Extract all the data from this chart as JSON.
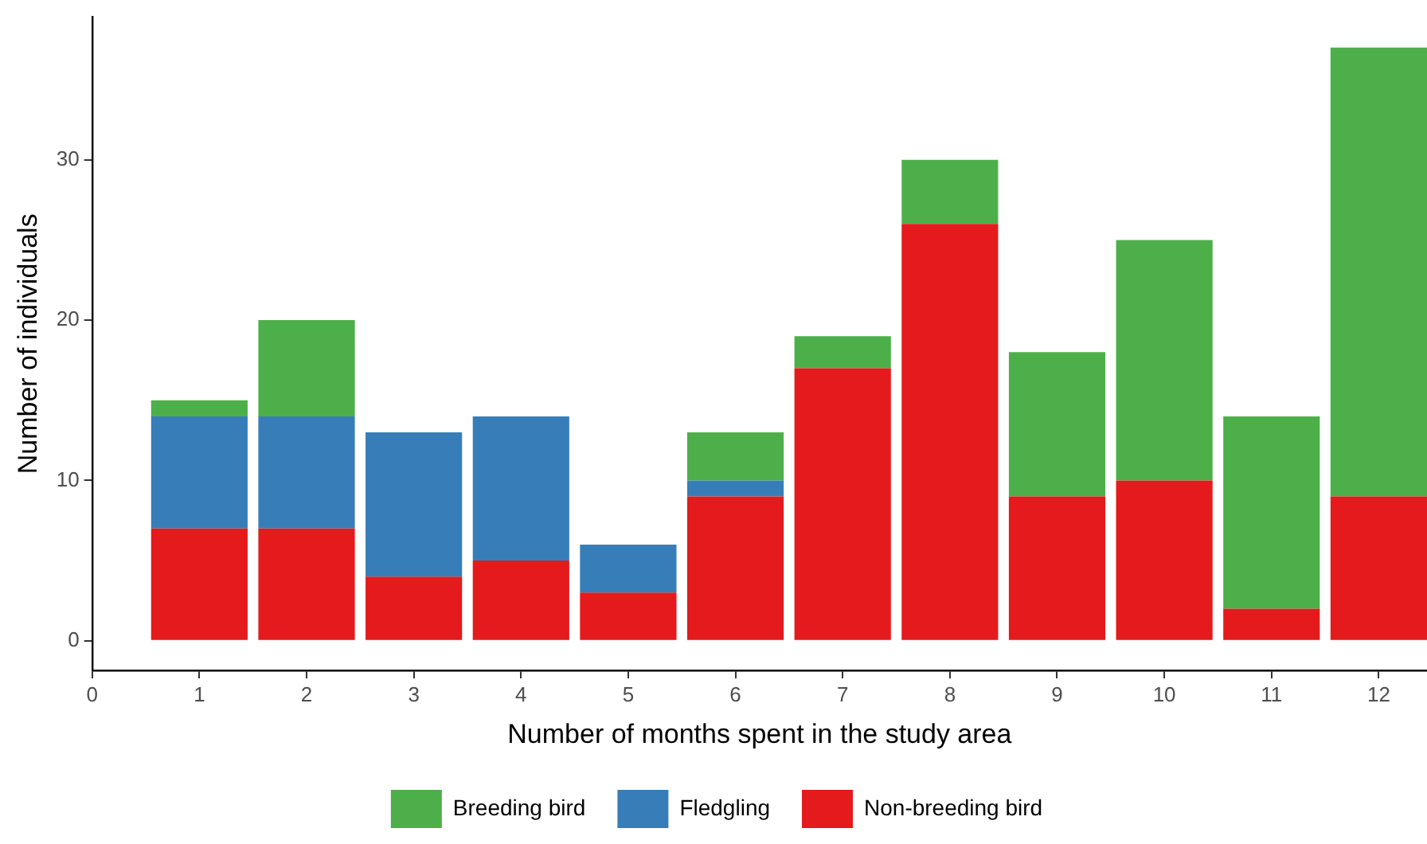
{
  "chart_data": {
    "type": "bar",
    "stacked": true,
    "xlabel": "Number of months spent in the study area",
    "ylabel": "Number of individuals",
    "x": [
      1,
      2,
      3,
      4,
      5,
      6,
      7,
      8,
      9,
      10,
      11,
      12
    ],
    "series": [
      {
        "name": "Non-breeding bird",
        "color": "#e41a1c",
        "values": [
          7,
          7,
          4,
          5,
          3,
          9,
          17,
          26,
          9,
          10,
          2,
          9
        ]
      },
      {
        "name": "Fledgling",
        "color": "#377eb8",
        "values": [
          7,
          7,
          9,
          9,
          3,
          1,
          0,
          0,
          0,
          0,
          0,
          0
        ]
      },
      {
        "name": "Breeding bird",
        "color": "#4daf4a",
        "values": [
          1,
          6,
          0,
          0,
          0,
          3,
          2,
          4,
          9,
          15,
          12,
          28
        ]
      }
    ],
    "xlim": [
      0,
      12.45
    ],
    "xticks": [
      0,
      1,
      2,
      3,
      4,
      5,
      6,
      7,
      8,
      9,
      10,
      11,
      12
    ],
    "ylim": [
      -1.85,
      38.9
    ],
    "yticks": [
      0,
      10,
      20,
      30
    ],
    "grid": false,
    "legend": "bottom"
  }
}
